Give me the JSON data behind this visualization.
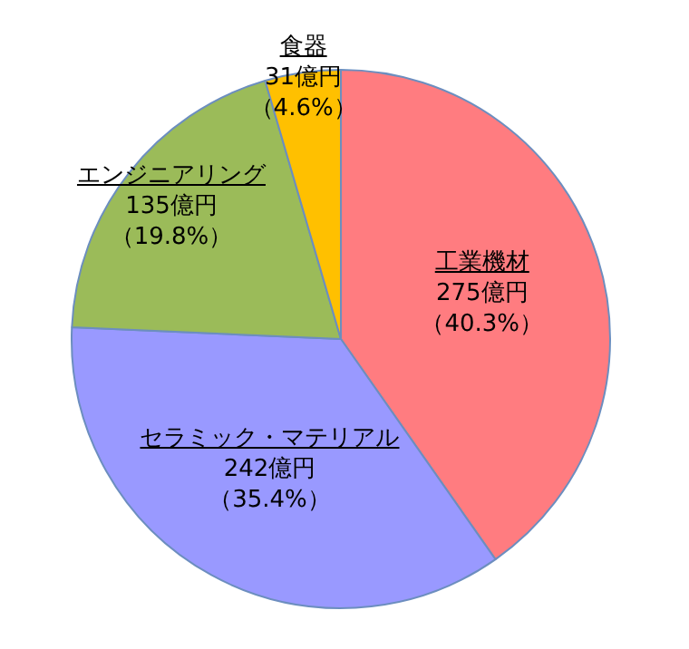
{
  "chart_data": {
    "type": "pie",
    "categories": [
      "工業機材",
      "セラミック・マテリアル",
      "エンジニアリング",
      "食器"
    ],
    "values": [
      275,
      242,
      135,
      31
    ],
    "colors": [
      "#ff7c80",
      "#9999ff",
      "#9bbb59",
      "#ffc000"
    ],
    "value_labels": [
      "275億円（40.3%）",
      "242億円（35.4%）",
      "135億円（19.8%）",
      "31億円（4.6%）"
    ],
    "legend": false
  }
}
